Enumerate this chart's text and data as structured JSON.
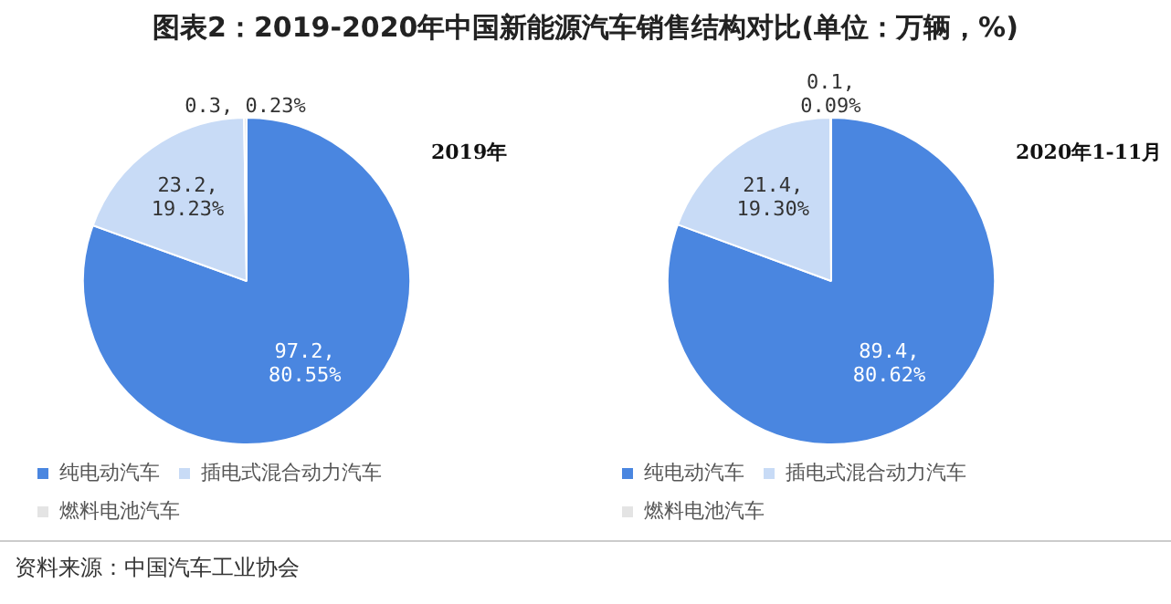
{
  "chart_data": [
    {
      "type": "pie",
      "title": "图表2：2019-2020年中国新能源汽车销售结构对比(单位：万辆，%)",
      "subtitle": "2019年",
      "categories": [
        "纯电动汽车",
        "插电式混合动力汽车",
        "燃料电池汽车"
      ],
      "values": [
        97.2,
        23.2,
        0.3
      ],
      "colors": [
        "#4a86e0",
        "#c8dbf6",
        "#e4e4e4"
      ],
      "value_labels": [
        "97.2,\n80.55%",
        "23.2,\n19.23%",
        "0.3, 0.23%"
      ],
      "legend": "bottom"
    },
    {
      "type": "pie",
      "subtitle": "2020年1-11月",
      "categories": [
        "纯电动汽车",
        "插电式混合动力汽车",
        "燃料电池汽车"
      ],
      "values": [
        89.4,
        21.4,
        0.1
      ],
      "colors": [
        "#4a86e0",
        "#c8dbf6",
        "#e4e4e4"
      ],
      "value_labels": [
        "89.4,\n80.62%",
        "21.4,\n19.30%",
        "0.1,\n0.09%"
      ],
      "legend": "bottom",
      "annotations": [
        "资料来源：中国汽车工业协会"
      ]
    }
  ]
}
